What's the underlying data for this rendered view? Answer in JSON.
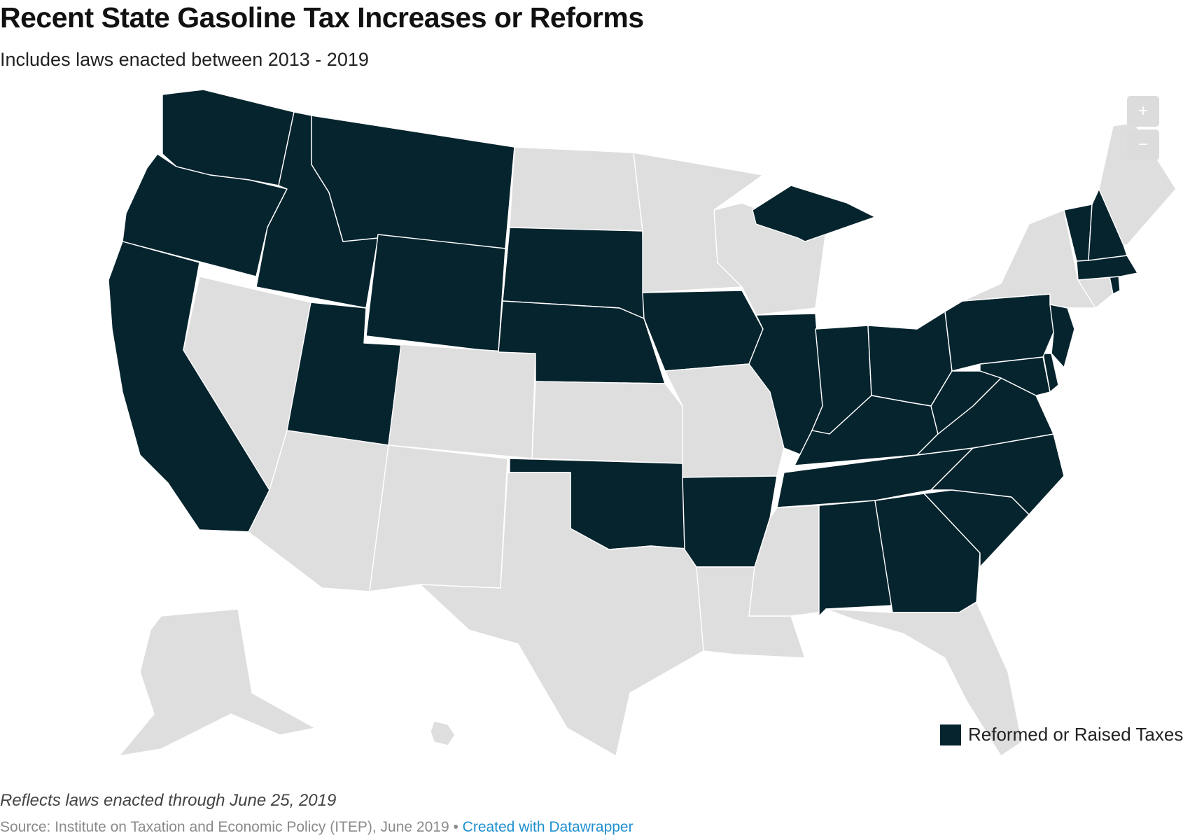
{
  "header": {
    "title": "Recent State Gasoline Tax Increases or Reforms",
    "subtitle": "Includes laws enacted between 2013 - 2019"
  },
  "controls": {
    "zoom_in": "+",
    "zoom_out": "−"
  },
  "legend": {
    "label": "Reformed or Raised Taxes"
  },
  "colors": {
    "highlight": "#06242e",
    "base": "#dedede",
    "border": "#ffffff"
  },
  "highlighted_states": [
    "WA",
    "OR",
    "CA",
    "ID",
    "MT",
    "WY",
    "UT",
    "SD",
    "NE",
    "OK",
    "AR",
    "IA",
    "IL",
    "IN",
    "MI",
    "OH",
    "KY",
    "TN",
    "AL",
    "GA",
    "SC",
    "NC",
    "VA",
    "WV",
    "MD",
    "DE",
    "PA",
    "NJ",
    "VT",
    "NH",
    "MA",
    "RI"
  ],
  "footer": {
    "note": "Reflects laws enacted through June 25, 2019",
    "source_text": "Source: Institute on Taxation and Economic Policy (ITEP), June 2019 • ",
    "credit": "Created with Datawrapper"
  }
}
